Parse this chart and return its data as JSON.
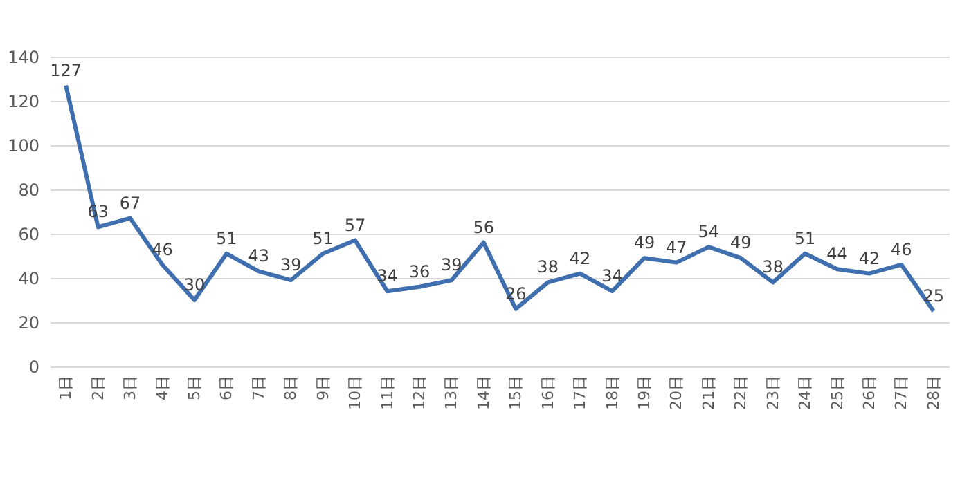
{
  "chart_data": {
    "type": "line",
    "categories": [
      "1日",
      "2日",
      "3日",
      "4日",
      "5日",
      "6日",
      "7日",
      "8日",
      "9日",
      "10日",
      "11日",
      "12日",
      "13日",
      "14日",
      "15日",
      "16日",
      "17日",
      "18日",
      "19日",
      "20日",
      "21日",
      "22日",
      "23日",
      "24日",
      "25日",
      "26日",
      "27日",
      "28日"
    ],
    "series": [
      {
        "color": "#3f6fae",
        "values": [
          127,
          63,
          67,
          46,
          30,
          51,
          43,
          39,
          51,
          57,
          34,
          36,
          39,
          56,
          26,
          38,
          42,
          34,
          49,
          47,
          54,
          49,
          38,
          51,
          44,
          42,
          46,
          25
        ]
      }
    ],
    "ylim": [
      0,
      140
    ],
    "yticks": [
      0,
      20,
      40,
      60,
      80,
      100,
      120,
      140
    ],
    "grid": "y",
    "data_labels": true,
    "marker": "none",
    "line_style": "solid"
  }
}
